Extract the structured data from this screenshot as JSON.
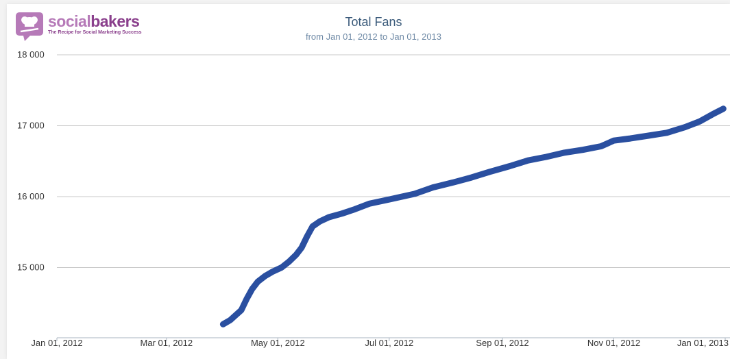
{
  "brand": {
    "name_part1": "social",
    "name_part2": "bakers",
    "tagline": "The Recipe for Social Marketing Success",
    "color_primary": "#8a3f8c",
    "color_secondary": "#b67ab8"
  },
  "chart_data": {
    "type": "line",
    "title": "Total Fans",
    "subtitle": "from Jan 01, 2012 to Jan 01, 2013",
    "xlabel": "",
    "ylabel": "",
    "x_range": [
      "2012-01-01",
      "2013-01-01"
    ],
    "ylim": [
      14000,
      18000
    ],
    "y_ticks": [
      15000,
      16000,
      17000,
      18000
    ],
    "y_tick_labels": [
      "15 000",
      "16 000",
      "17 000",
      "18 000"
    ],
    "x_ticks": [
      "2012-01-01",
      "2012-03-01",
      "2012-05-01",
      "2012-07-01",
      "2012-09-01",
      "2012-11-01",
      "2013-01-01"
    ],
    "x_tick_labels": [
      "Jan 01, 2012",
      "Mar 01, 2012",
      "May 01, 2012",
      "Jul 01, 2012",
      "Sep 01, 2012",
      "Nov 01, 2012",
      "Jan 01, 2013"
    ],
    "grid": true,
    "line_color": "#2a4fa0",
    "series": [
      {
        "points": [
          [
            "2012-04-01",
            14200
          ],
          [
            "2012-04-05",
            14260
          ],
          [
            "2012-04-08",
            14330
          ],
          [
            "2012-04-11",
            14400
          ],
          [
            "2012-04-14",
            14560
          ],
          [
            "2012-04-17",
            14700
          ],
          [
            "2012-04-20",
            14800
          ],
          [
            "2012-04-24",
            14880
          ],
          [
            "2012-04-28",
            14940
          ],
          [
            "2012-05-03",
            15000
          ],
          [
            "2012-05-07",
            15080
          ],
          [
            "2012-05-11",
            15180
          ],
          [
            "2012-05-14",
            15280
          ],
          [
            "2012-05-17",
            15440
          ],
          [
            "2012-05-20",
            15580
          ],
          [
            "2012-05-24",
            15650
          ],
          [
            "2012-05-29",
            15710
          ],
          [
            "2012-06-05",
            15760
          ],
          [
            "2012-06-12",
            15820
          ],
          [
            "2012-06-20",
            15900
          ],
          [
            "2012-07-01",
            15960
          ],
          [
            "2012-07-15",
            16040
          ],
          [
            "2012-07-25",
            16130
          ],
          [
            "2012-08-05",
            16200
          ],
          [
            "2012-08-15",
            16270
          ],
          [
            "2012-08-25",
            16350
          ],
          [
            "2012-09-05",
            16430
          ],
          [
            "2012-09-15",
            16510
          ],
          [
            "2012-09-25",
            16560
          ],
          [
            "2012-10-05",
            16620
          ],
          [
            "2012-10-15",
            16660
          ],
          [
            "2012-10-25",
            16710
          ],
          [
            "2012-11-01",
            16790
          ],
          [
            "2012-11-10",
            16820
          ],
          [
            "2012-11-20",
            16860
          ],
          [
            "2012-11-30",
            16900
          ],
          [
            "2012-12-10",
            16980
          ],
          [
            "2012-12-18",
            17060
          ],
          [
            "2012-12-25",
            17160
          ],
          [
            "2012-12-31",
            17240
          ]
        ]
      }
    ]
  }
}
